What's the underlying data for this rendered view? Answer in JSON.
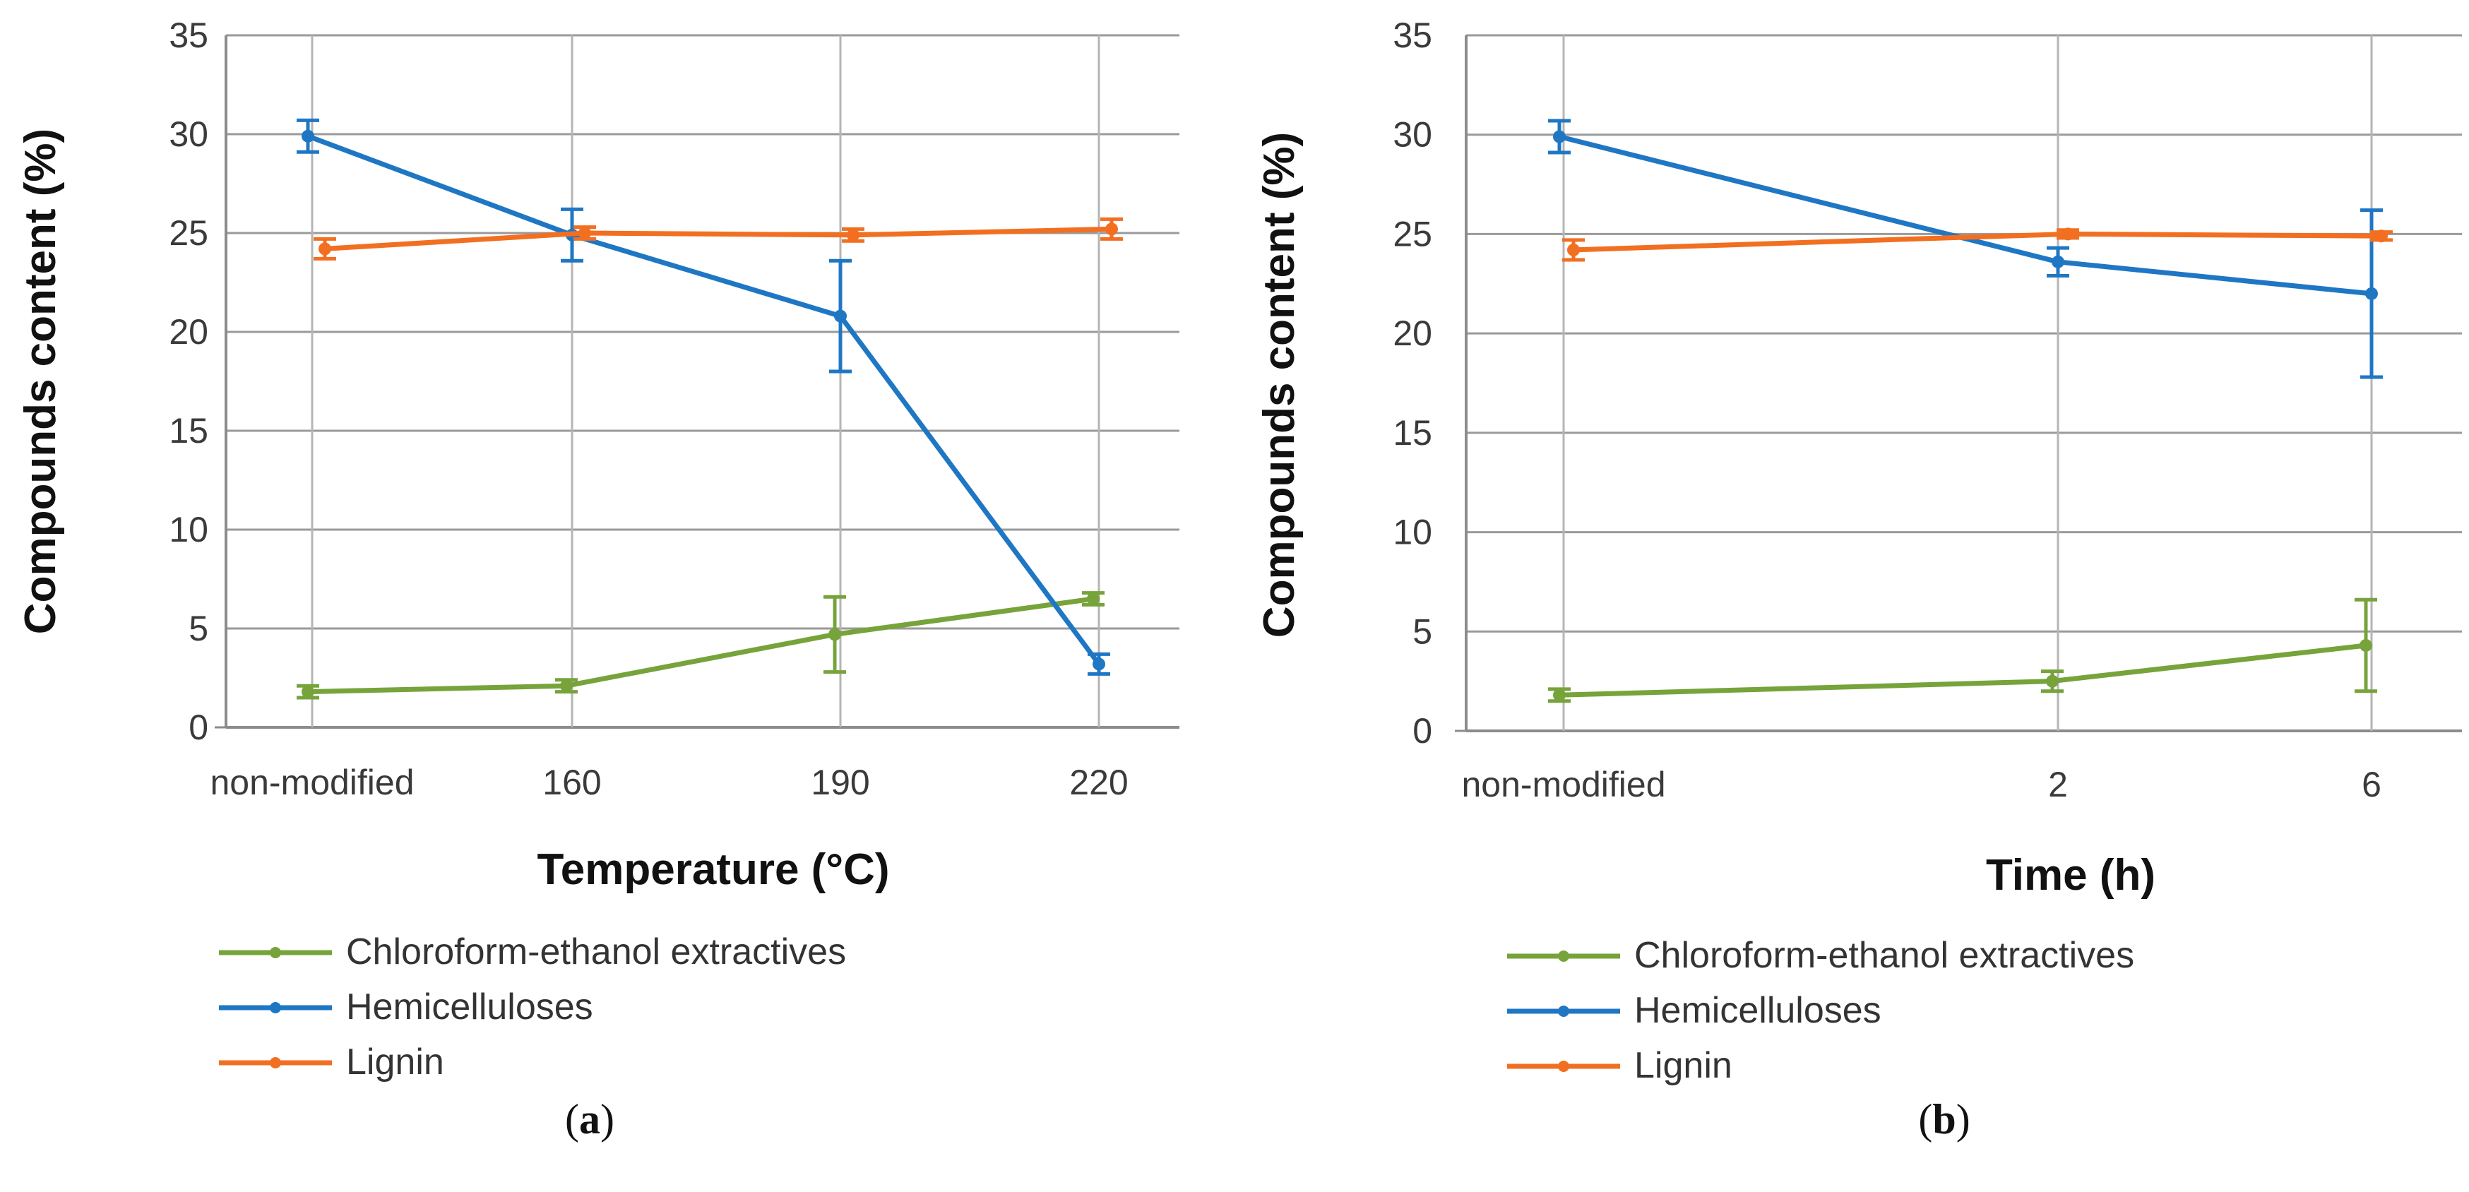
{
  "chart_data": [
    {
      "type": "line",
      "panel": "a",
      "categories": [
        "non-modified",
        "160",
        "190",
        "220"
      ],
      "xlabel": "Temperature (°C)",
      "ylabel": "Compounds content (%)",
      "ylim": [
        0,
        35
      ],
      "yticks": [
        0,
        5,
        10,
        15,
        20,
        25,
        30,
        35
      ],
      "grid": true,
      "legend_position": "bottom",
      "series": [
        {
          "name": "Chloroform-ethanol extractives",
          "color": "#77a33b",
          "values": [
            1.8,
            2.1,
            4.7,
            6.5
          ],
          "errors": [
            0.3,
            0.3,
            1.9,
            0.3
          ]
        },
        {
          "name": "Hemicelluloses",
          "color": "#1f77c4",
          "values": [
            29.9,
            24.9,
            20.8,
            3.2
          ],
          "errors": [
            0.8,
            1.3,
            2.8,
            0.5
          ]
        },
        {
          "name": "Lignin",
          "color": "#f26f21",
          "values": [
            24.2,
            25.0,
            24.9,
            25.2
          ],
          "errors": [
            0.5,
            0.3,
            0.3,
            0.5
          ]
        }
      ]
    },
    {
      "type": "line",
      "panel": "b",
      "categories": [
        "non-modified",
        "2",
        "6"
      ],
      "xlabel": "Time (h)",
      "ylabel": "Compounds content (%)",
      "ylim": [
        0,
        35
      ],
      "yticks": [
        0,
        5,
        10,
        15,
        20,
        25,
        30,
        35
      ],
      "grid": true,
      "legend_position": "bottom",
      "series": [
        {
          "name": "Chloroform-ethanol extractives",
          "color": "#77a33b",
          "values": [
            1.8,
            2.5,
            4.3
          ],
          "errors": [
            0.3,
            0.5,
            2.3
          ]
        },
        {
          "name": "Hemicelluloses",
          "color": "#1f77c4",
          "values": [
            29.9,
            23.6,
            22.0
          ],
          "errors": [
            0.8,
            0.7,
            4.2
          ]
        },
        {
          "name": "Lignin",
          "color": "#f26f21",
          "values": [
            24.2,
            25.0,
            24.9
          ],
          "errors": [
            0.5,
            0.2,
            0.2
          ]
        }
      ]
    }
  ],
  "panels": {
    "a": {
      "open": "(",
      "letter": "a",
      "close": ")"
    },
    "b": {
      "open": "(",
      "letter": "b",
      "close": ")"
    }
  }
}
